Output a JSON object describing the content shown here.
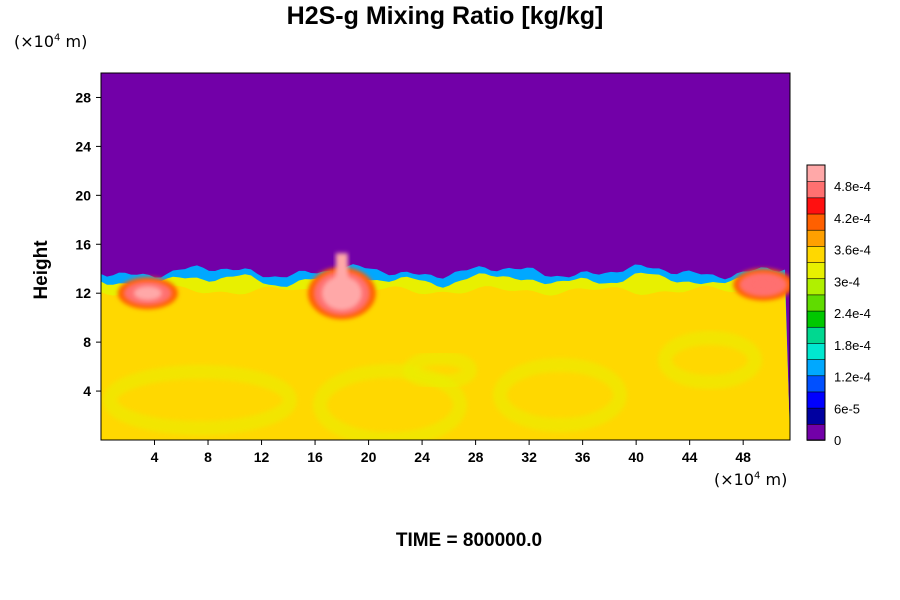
{
  "chart_data": {
    "type": "heatmap",
    "title": "H2S-g Mixing Ratio [kg/kg]",
    "ylabel": "Height",
    "x_unit": {
      "prefix": "(×10",
      "exp": "4",
      "suffix": " m)"
    },
    "y_unit": {
      "prefix": "(×10",
      "exp": "4",
      "suffix": " m)"
    },
    "xlim": [
      0,
      51.5
    ],
    "ylim": [
      0,
      30
    ],
    "x_ticks": [
      4,
      8,
      12,
      16,
      20,
      24,
      28,
      32,
      36,
      40,
      44,
      48
    ],
    "y_ticks": [
      4,
      8,
      12,
      16,
      20,
      24,
      28
    ],
    "colorbar": {
      "min": 0,
      "max": 0.00052,
      "tick_values": [
        0,
        6e-05,
        0.00012,
        0.00018,
        0.00024,
        0.0003,
        0.00036,
        0.00042,
        0.00048
      ],
      "tick_labels": [
        "0",
        "6e-5",
        "1.2e-4",
        "1.8e-4",
        "2.4e-4",
        "3e-4",
        "3.6e-4",
        "4.2e-4",
        "4.8e-4"
      ],
      "colors": [
        "#7200a8",
        "#0000a0",
        "#0000ff",
        "#0050ff",
        "#00a8ff",
        "#00e8d0",
        "#00d890",
        "#00c800",
        "#60dc00",
        "#b0f000",
        "#e8f000",
        "#ffd800",
        "#ffa000",
        "#ff6000",
        "#ff1010",
        "#ff7070",
        "#ffa8a8"
      ]
    },
    "regions": {
      "upper_layer_value": 0.0,
      "lower_layer_value": 0.00034,
      "interface_height": 14.0,
      "high_value_features": [
        {
          "x": 3.5,
          "y": 12.0,
          "value": 0.00049
        },
        {
          "x": 18.0,
          "y": 12.0,
          "value": 0.00052
        },
        {
          "x": 49.5,
          "y": 12.7,
          "value": 0.00048
        }
      ]
    },
    "time_label": "TIME = 800000.0"
  }
}
